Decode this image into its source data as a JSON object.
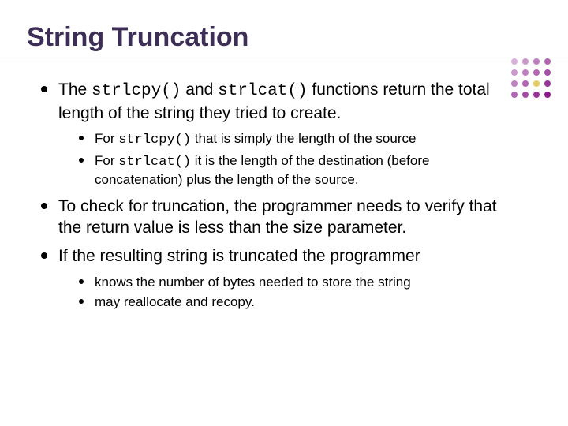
{
  "title": "String Truncation",
  "dot_colors": [
    "#d9b3d9",
    "#cc99cc",
    "#bf80bf",
    "#b266b2",
    "#cc99cc",
    "#bf80bf",
    "#b266b2",
    "#a64da6",
    "#bf80bf",
    "#b266b2",
    "#e6cc66",
    "#993399",
    "#b266b2",
    "#a64da6",
    "#993399",
    "#8c1a8c"
  ],
  "colors": {
    "title": "#3d2e57",
    "text": "#000000",
    "underline": "#888888",
    "background": "#ffffff"
  },
  "typography": {
    "title_fontsize": 34,
    "lvl1_fontsize": 21,
    "lvl2_fontsize": 17,
    "code_fontfamily": "Courier New"
  },
  "b1": {
    "pre": "The ",
    "c1": "strlcpy()",
    "mid": " and ",
    "c2": "strlcat()",
    "post": " functions return the total length of the string they tried to create."
  },
  "b1s": [
    {
      "pre": "For ",
      "c": "strlcpy()",
      "post": " that is simply the length of the source"
    },
    {
      "pre": "For ",
      "c": "strlcat()",
      "post": " it is the length of the destination (before concatenation) plus the length of the source."
    }
  ],
  "b2": "To check for truncation, the programmer needs to verify that the return value is less than the size parameter.",
  "b3": "If the resulting string is truncated the programmer",
  "b3s": [
    "knows the number of bytes needed to store the string",
    "may reallocate and recopy."
  ]
}
